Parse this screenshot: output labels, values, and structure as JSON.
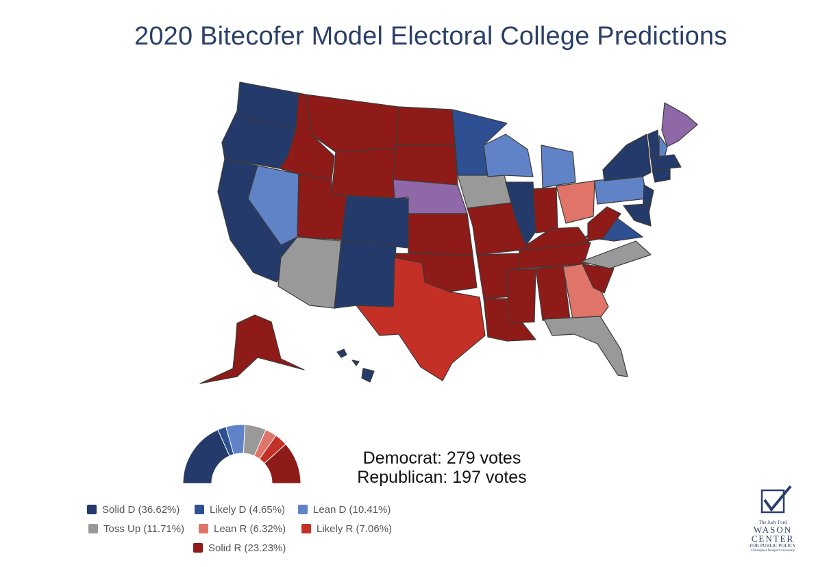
{
  "title": "2020 Bitecofer Model Electoral College Predictions",
  "summary": {
    "democrat": "Democrat: 279 votes",
    "republican": "Republican: 197 votes"
  },
  "colors": {
    "solid_d": "#243a6a",
    "likely_d": "#2e4f92",
    "lean_d": "#6083c8",
    "toss_up": "#999999",
    "lean_r": "#e07468",
    "likely_r": "#c42f26",
    "solid_r": "#8e1b18",
    "split": "#8f68a8",
    "border": "#3b3b3b"
  },
  "chart_data": {
    "type": "pie",
    "subtype": "half-donut",
    "categories": [
      "Solid D",
      "Likely D",
      "Lean D",
      "Toss Up",
      "Lean R",
      "Likely R",
      "Solid R"
    ],
    "values": [
      36.62,
      4.65,
      10.41,
      11.71,
      6.32,
      7.06,
      23.23
    ],
    "color_keys": [
      "solid_d",
      "likely_d",
      "lean_d",
      "toss_up",
      "lean_r",
      "likely_r",
      "solid_r"
    ],
    "legend_labels": [
      "Solid D (36.62%)",
      "Likely D (4.65%)",
      "Lean D (10.41%)",
      "Toss Up (11.71%)",
      "Lean R (6.32%)",
      "Likely R (7.06%)",
      "Solid R (23.23%)"
    ],
    "legend_position": "bottom-left"
  },
  "logo": {
    "line1": "The Judy Ford",
    "line2": "WASON",
    "line3": "CENTER",
    "line4": "FOR PUBLIC POLICY",
    "line5": "Christopher Newport University"
  }
}
